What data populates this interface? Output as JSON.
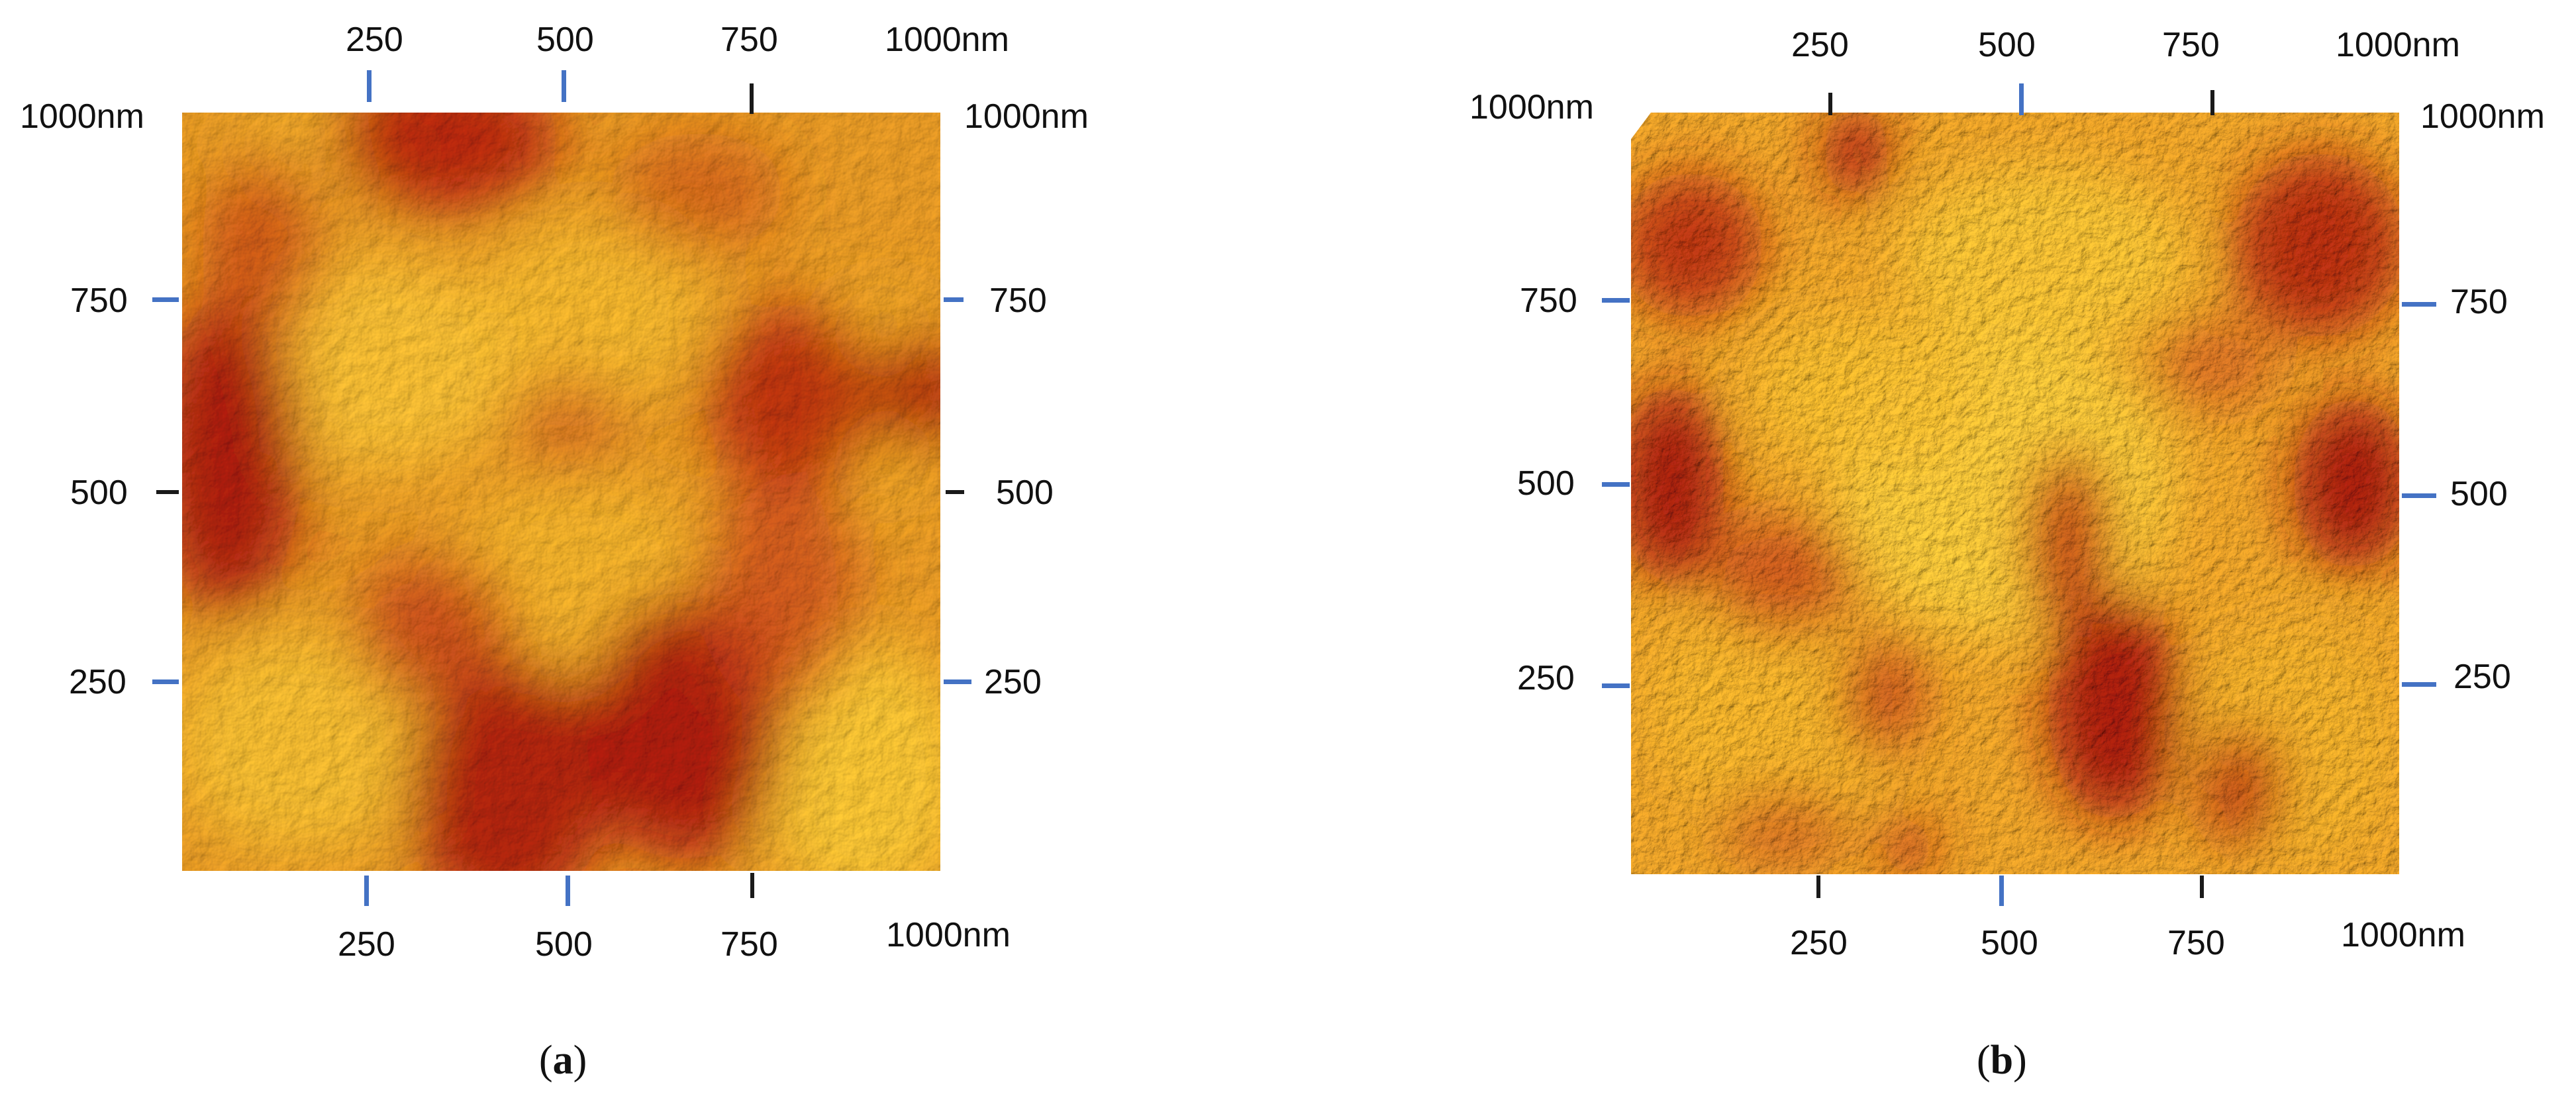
{
  "panels": [
    {
      "id": "a",
      "caption_letter": "a",
      "top_axis": [
        "250",
        "500",
        "750",
        "1000nm"
      ],
      "bottom_axis": [
        "250",
        "500",
        "750",
        "1000nm"
      ],
      "left_axis": [
        "1000nm",
        "750",
        "500",
        "250"
      ],
      "right_axis": [
        "1000nm",
        "750",
        "500",
        "250"
      ]
    },
    {
      "id": "b",
      "caption_letter": "b",
      "top_axis": [
        "250",
        "500",
        "750",
        "1000nm"
      ],
      "bottom_axis": [
        "250",
        "500",
        "750",
        "1000nm"
      ],
      "left_axis": [
        "1000nm",
        "750",
        "500",
        "250"
      ],
      "right_axis": [
        "1000nm",
        "750",
        "500",
        "250"
      ]
    }
  ],
  "colors": {
    "tick": "#4472c4",
    "surface_light": "#f2b52a",
    "surface_dark": "#a8160c"
  }
}
